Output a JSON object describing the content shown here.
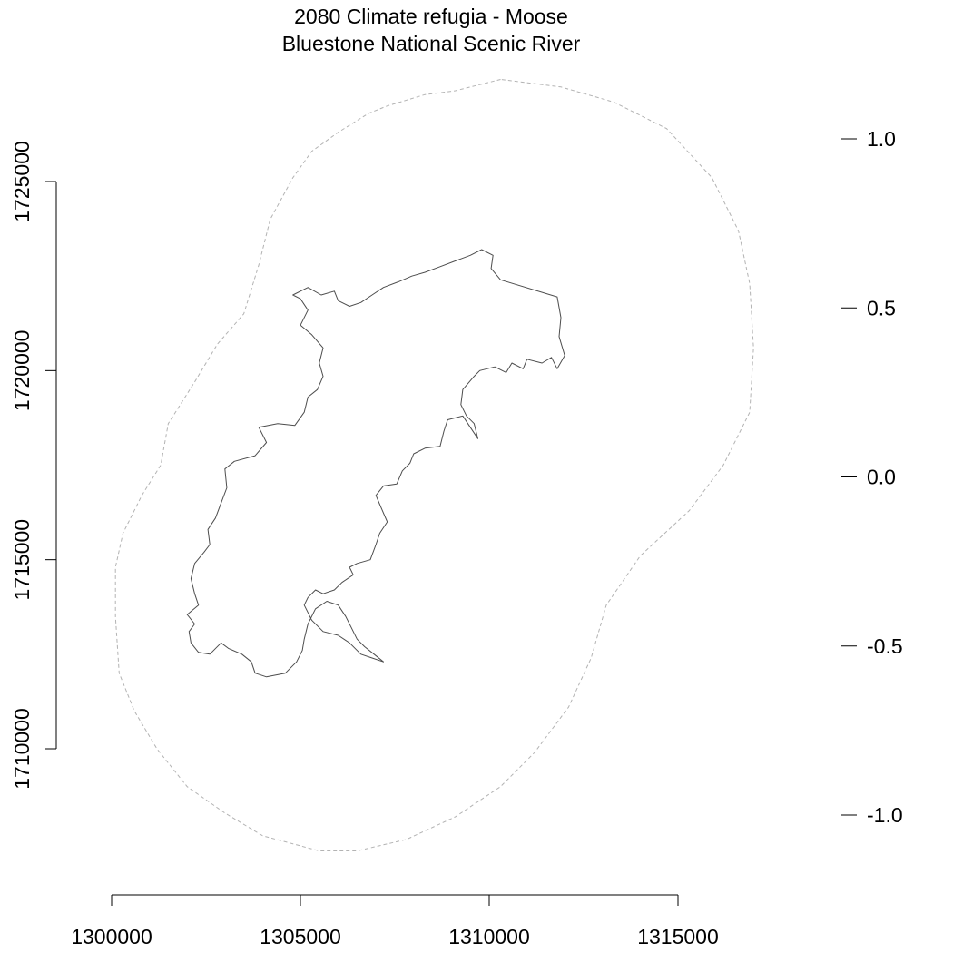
{
  "title": {
    "line1": "2080 Climate refugia - Moose",
    "line2": "Bluestone National Scenic River"
  },
  "colors": {
    "buffer_outline": "#b3b3b3",
    "park_boundary": "#4d4d4d",
    "axes": "#000000",
    "background": "#ffffff"
  },
  "chart_data": {
    "type": "map",
    "x_axis": {
      "position": "bottom",
      "ticks": [
        1300000,
        1305000,
        1310000,
        1315000
      ],
      "tick_labels": [
        "1300000",
        "1305000",
        "1310000",
        "1315000"
      ],
      "range": [
        1300000,
        1315000
      ]
    },
    "y_axis": {
      "position": "left",
      "ticks": [
        1710000,
        1715000,
        1720000,
        1725000
      ],
      "tick_labels": [
        "1710000",
        "1715000",
        "1720000",
        "1725000"
      ],
      "range": [
        1710000,
        1725000
      ]
    },
    "legend_scale": {
      "position": "right",
      "ticks": [
        1.0,
        0.5,
        0.0,
        -0.5,
        -1.0
      ],
      "tick_labels": [
        "1.0",
        "0.5",
        "0.0",
        "-0.5",
        "-1.0"
      ]
    },
    "layers": [
      {
        "id": "buffer",
        "style": "dashed",
        "points": [
          [
            1310300,
            1727700
          ],
          [
            1309100,
            1727400
          ],
          [
            1308300,
            1727300
          ],
          [
            1307300,
            1727000
          ],
          [
            1306800,
            1726800
          ],
          [
            1306000,
            1726300
          ],
          [
            1305300,
            1725800
          ],
          [
            1304800,
            1725100
          ],
          [
            1304200,
            1724000
          ],
          [
            1303900,
            1722800
          ],
          [
            1303500,
            1721500
          ],
          [
            1302800,
            1720700
          ],
          [
            1302200,
            1719700
          ],
          [
            1301500,
            1718600
          ],
          [
            1301300,
            1717500
          ],
          [
            1300800,
            1716700
          ],
          [
            1300300,
            1715700
          ],
          [
            1300100,
            1714800
          ],
          [
            1300100,
            1713500
          ],
          [
            1300200,
            1712000
          ],
          [
            1300600,
            1711000
          ],
          [
            1301200,
            1710000
          ],
          [
            1302000,
            1709000
          ],
          [
            1303000,
            1708300
          ],
          [
            1304000,
            1707700
          ],
          [
            1305500,
            1707300
          ],
          [
            1306500,
            1707300
          ],
          [
            1307800,
            1707600
          ],
          [
            1309100,
            1708200
          ],
          [
            1310300,
            1709000
          ],
          [
            1311200,
            1709900
          ],
          [
            1312100,
            1711100
          ],
          [
            1312700,
            1712400
          ],
          [
            1313100,
            1713800
          ],
          [
            1314000,
            1715100
          ],
          [
            1315300,
            1716300
          ],
          [
            1316200,
            1717500
          ],
          [
            1316900,
            1718900
          ],
          [
            1317000,
            1720600
          ],
          [
            1316900,
            1722300
          ],
          [
            1316600,
            1723700
          ],
          [
            1315900,
            1725100
          ],
          [
            1314700,
            1726400
          ],
          [
            1313300,
            1727100
          ],
          [
            1311900,
            1727500
          ],
          [
            1310300,
            1727700
          ]
        ]
      },
      {
        "id": "park-boundary",
        "style": "solid",
        "points": [
          [
            1310300,
            1722400
          ],
          [
            1311800,
            1721950
          ],
          [
            1311900,
            1721400
          ],
          [
            1311850,
            1720900
          ],
          [
            1312000,
            1720400
          ],
          [
            1311800,
            1720050
          ],
          [
            1311650,
            1720350
          ],
          [
            1311400,
            1720200
          ],
          [
            1311000,
            1720300
          ],
          [
            1310900,
            1720050
          ],
          [
            1310600,
            1720200
          ],
          [
            1310450,
            1719950
          ],
          [
            1310150,
            1720100
          ],
          [
            1309750,
            1720000
          ],
          [
            1309600,
            1719850
          ],
          [
            1309300,
            1719500
          ],
          [
            1309250,
            1719100
          ],
          [
            1309400,
            1718800
          ],
          [
            1309600,
            1718600
          ],
          [
            1309700,
            1718200
          ],
          [
            1309500,
            1718500
          ],
          [
            1309300,
            1718800
          ],
          [
            1308900,
            1718700
          ],
          [
            1308800,
            1718400
          ],
          [
            1308700,
            1718000
          ],
          [
            1308300,
            1717950
          ],
          [
            1308000,
            1717800
          ],
          [
            1307900,
            1717550
          ],
          [
            1307700,
            1717350
          ],
          [
            1307550,
            1717000
          ],
          [
            1307200,
            1716950
          ],
          [
            1307000,
            1716700
          ],
          [
            1307150,
            1716350
          ],
          [
            1307300,
            1716000
          ],
          [
            1307100,
            1715700
          ],
          [
            1307000,
            1715400
          ],
          [
            1306850,
            1715000
          ],
          [
            1306500,
            1714900
          ],
          [
            1306300,
            1714800
          ],
          [
            1306400,
            1714600
          ],
          [
            1306100,
            1714400
          ],
          [
            1305900,
            1714200
          ],
          [
            1305600,
            1714100
          ],
          [
            1305400,
            1714200
          ],
          [
            1305200,
            1714000
          ],
          [
            1305100,
            1713800
          ],
          [
            1305300,
            1713400
          ],
          [
            1305600,
            1713100
          ],
          [
            1306000,
            1713000
          ],
          [
            1306300,
            1712800
          ],
          [
            1306600,
            1712500
          ],
          [
            1306900,
            1712400
          ],
          [
            1307200,
            1712300
          ],
          [
            1306950,
            1712500
          ],
          [
            1306700,
            1712700
          ],
          [
            1306500,
            1712900
          ],
          [
            1306350,
            1713200
          ],
          [
            1306200,
            1713500
          ],
          [
            1306000,
            1713800
          ],
          [
            1305700,
            1713900
          ],
          [
            1305400,
            1713700
          ],
          [
            1305200,
            1713300
          ],
          [
            1305100,
            1712900
          ],
          [
            1305050,
            1712600
          ],
          [
            1304900,
            1712300
          ],
          [
            1304600,
            1712000
          ],
          [
            1304100,
            1711900
          ],
          [
            1303800,
            1712000
          ],
          [
            1303700,
            1712300
          ],
          [
            1303450,
            1712500
          ],
          [
            1303100,
            1712650
          ],
          [
            1302900,
            1712800
          ],
          [
            1302600,
            1712500
          ],
          [
            1302300,
            1712550
          ],
          [
            1302100,
            1712800
          ],
          [
            1302050,
            1713100
          ],
          [
            1302200,
            1713300
          ],
          [
            1302000,
            1713550
          ],
          [
            1302300,
            1713800
          ],
          [
            1302200,
            1714100
          ],
          [
            1302100,
            1714500
          ],
          [
            1302200,
            1714900
          ],
          [
            1302450,
            1715200
          ],
          [
            1302600,
            1715400
          ],
          [
            1302550,
            1715800
          ],
          [
            1302750,
            1716100
          ],
          [
            1302900,
            1716500
          ],
          [
            1303050,
            1716900
          ],
          [
            1303000,
            1717400
          ],
          [
            1303250,
            1717600
          ],
          [
            1303800,
            1717750
          ],
          [
            1304100,
            1718100
          ],
          [
            1303900,
            1718500
          ],
          [
            1304400,
            1718600
          ],
          [
            1304850,
            1718550
          ],
          [
            1305100,
            1718900
          ],
          [
            1305200,
            1719300
          ],
          [
            1305450,
            1719500
          ],
          [
            1305600,
            1719850
          ],
          [
            1305500,
            1720200
          ],
          [
            1305600,
            1720600
          ],
          [
            1305300,
            1720950
          ],
          [
            1305000,
            1721200
          ],
          [
            1305200,
            1721600
          ],
          [
            1305000,
            1721900
          ],
          [
            1304800,
            1722000
          ],
          [
            1305200,
            1722200
          ],
          [
            1305550,
            1722000
          ],
          [
            1305900,
            1722100
          ],
          [
            1306000,
            1721850
          ],
          [
            1306300,
            1721700
          ],
          [
            1306600,
            1721800
          ],
          [
            1306900,
            1722000
          ],
          [
            1307200,
            1722200
          ],
          [
            1307600,
            1722350
          ],
          [
            1307950,
            1722500
          ],
          [
            1308300,
            1722600
          ],
          [
            1308700,
            1722750
          ],
          [
            1309100,
            1722900
          ],
          [
            1309500,
            1723050
          ],
          [
            1309800,
            1723200
          ],
          [
            1310100,
            1723050
          ],
          [
            1310050,
            1722700
          ],
          [
            1310300,
            1722400
          ]
        ]
      }
    ],
    "legend": "none",
    "grid": false
  }
}
